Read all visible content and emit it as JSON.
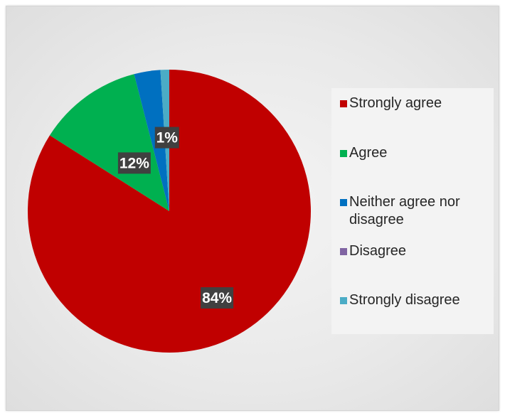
{
  "chart_data": {
    "type": "pie",
    "categories": [
      "Strongly agree",
      "Agree",
      "Neither agree nor disagree",
      "Disagree",
      "Strongly disagree"
    ],
    "values": [
      84,
      12,
      3,
      0,
      1
    ],
    "data_labels": [
      "84%",
      "12%",
      "",
      "",
      "1%"
    ],
    "colors": [
      "#c00000",
      "#00b050",
      "#0070c0",
      "#8064a2",
      "#4bacc6"
    ],
    "start_angle_deg": 0,
    "direction": "clockwise",
    "legend_position": "right",
    "title": ""
  },
  "legend": {
    "items": [
      {
        "label": "Strongly agree",
        "color": "#c00000"
      },
      {
        "label": "Agree",
        "color": "#00b050"
      },
      {
        "label": "Neither agree nor disagree",
        "color": "#0070c0"
      },
      {
        "label": "Disagree",
        "color": "#8064a2"
      },
      {
        "label": "Strongly disagree",
        "color": "#4bacc6"
      }
    ]
  }
}
